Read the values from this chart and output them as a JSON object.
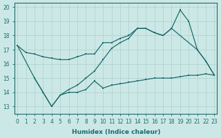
{
  "xlabel": "Humidex (Indice chaleur)",
  "bg_color": "#cce8e6",
  "line_color": "#1a6b6b",
  "grid_color": "#aacfcd",
  "series": [
    {
      "x": [
        0,
        1,
        2,
        3,
        4,
        5,
        6,
        7,
        8,
        9,
        10,
        11,
        12,
        13,
        14,
        15,
        16,
        17,
        18,
        21,
        22,
        23
      ],
      "y": [
        17.3,
        16.8,
        16.7,
        16.5,
        16.4,
        16.3,
        16.3,
        16.5,
        16.7,
        16.7,
        17.5,
        17.5,
        17.8,
        18.0,
        18.5,
        18.5,
        18.2,
        18.0,
        18.5,
        17.0,
        16.2,
        15.2
      ]
    },
    {
      "x": [
        2,
        3,
        4,
        5,
        6,
        7,
        8,
        9,
        10,
        11,
        12,
        13,
        14,
        15,
        16,
        17,
        18,
        19,
        20,
        21,
        22,
        23
      ],
      "y": [
        15.0,
        14.0,
        13.0,
        13.8,
        14.0,
        14.0,
        14.2,
        14.8,
        14.3,
        14.5,
        14.6,
        14.7,
        14.8,
        14.9,
        15.0,
        15.0,
        15.0,
        15.1,
        15.2,
        15.2,
        15.3,
        15.2
      ]
    },
    {
      "x": [
        0,
        2,
        3,
        4,
        5,
        6,
        7,
        8,
        9,
        10,
        11,
        12,
        13,
        14,
        15,
        16,
        17,
        18,
        19,
        20,
        21,
        22,
        23
      ],
      "y": [
        17.3,
        15.0,
        14.0,
        13.0,
        13.8,
        14.2,
        14.5,
        15.0,
        15.5,
        16.3,
        17.1,
        17.5,
        17.8,
        18.5,
        18.5,
        18.2,
        18.0,
        18.5,
        19.8,
        19.0,
        17.0,
        16.2,
        15.2
      ]
    }
  ],
  "xlim": [
    0,
    23
  ],
  "ylim": [
    12.5,
    20.3
  ],
  "yticks": [
    13,
    14,
    15,
    16,
    17,
    18,
    19,
    20
  ],
  "xticks": [
    0,
    1,
    2,
    3,
    4,
    5,
    6,
    7,
    8,
    9,
    10,
    11,
    12,
    13,
    14,
    15,
    16,
    17,
    18,
    19,
    20,
    21,
    22,
    23
  ]
}
